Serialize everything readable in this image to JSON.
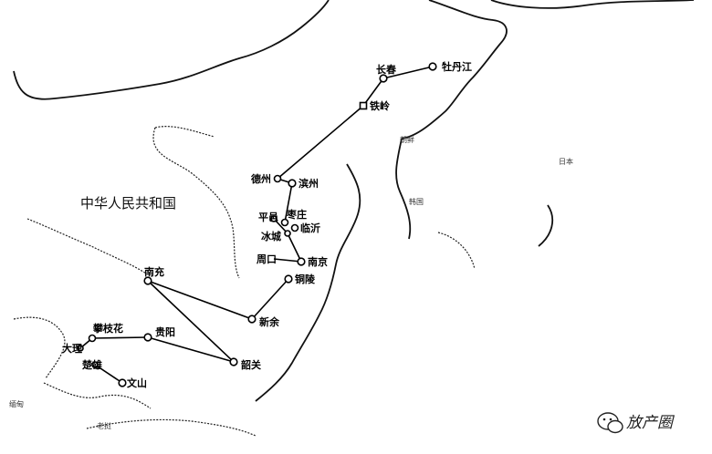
{
  "map": {
    "country_main": "中华人民共和国",
    "region_labels": {
      "korea": "朝鲜",
      "south_korea": "韩国",
      "japan": "日本",
      "myanmar": "缅甸",
      "laos": "老挝"
    },
    "watermark": "放产圈"
  },
  "cities": [
    {
      "name": "牡丹江",
      "id": "mudanjiang"
    },
    {
      "name": "长春",
      "id": "changchun"
    },
    {
      "name": "铁岭",
      "id": "tieling"
    },
    {
      "name": "德州",
      "id": "dezhou"
    },
    {
      "name": "滨州",
      "id": "binzhou"
    },
    {
      "name": "平邑",
      "id": "pingyi"
    },
    {
      "name": "枣庄",
      "id": "zaozhuang"
    },
    {
      "name": "临沂",
      "id": "linyi"
    },
    {
      "name": "冰城",
      "id": "bingcheng"
    },
    {
      "name": "周口",
      "id": "zhoukou"
    },
    {
      "name": "南京",
      "id": "nanjing"
    },
    {
      "name": "铜陵",
      "id": "tongling"
    },
    {
      "name": "新余",
      "id": "xinyu"
    },
    {
      "name": "南充",
      "id": "nanchong"
    },
    {
      "name": "攀枝花",
      "id": "panzhihua"
    },
    {
      "name": "贵阳",
      "id": "guiyang"
    },
    {
      "name": "大理",
      "id": "dali"
    },
    {
      "name": "楚雄",
      "id": "chuxiong"
    },
    {
      "name": "文山",
      "id": "wenshan"
    },
    {
      "name": "韶关",
      "id": "shaoguan"
    }
  ]
}
